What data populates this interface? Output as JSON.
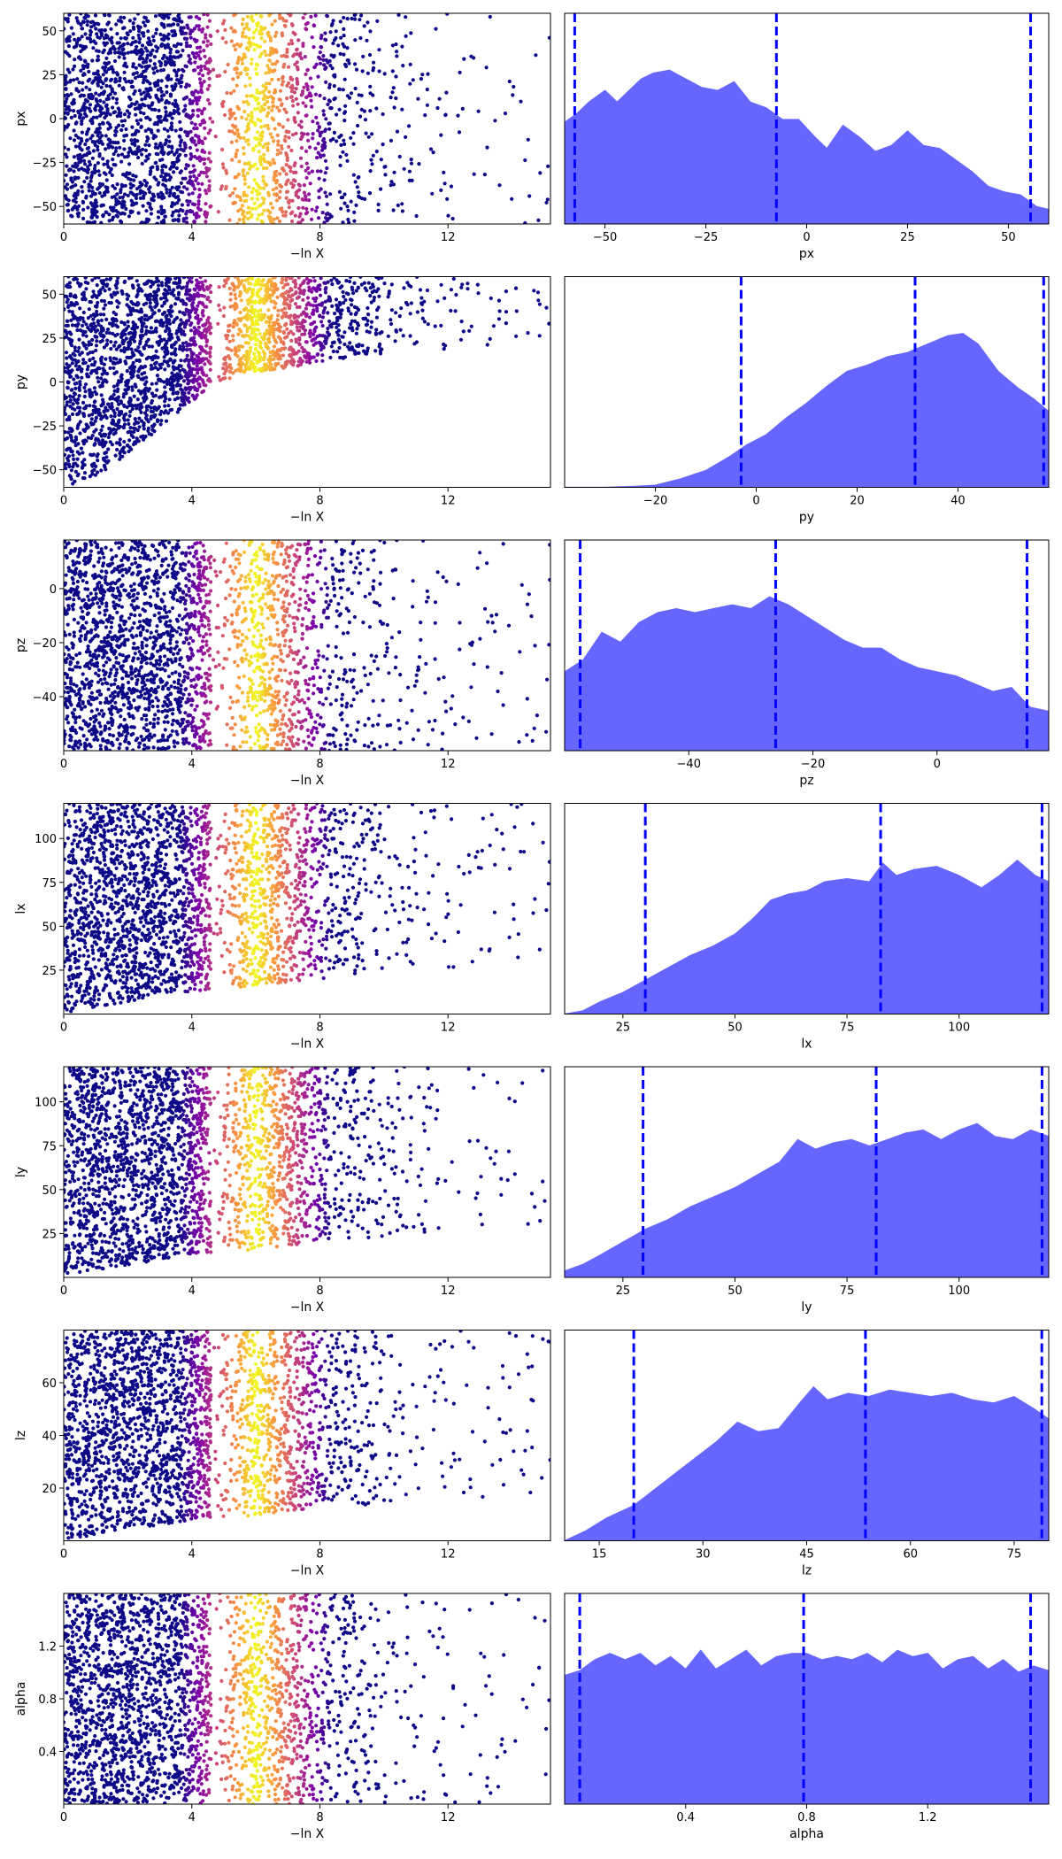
{
  "chart_data": [
    {
      "type": "scatter",
      "xlabel": "−ln X",
      "ylabel": "px",
      "xlim": [
        0,
        15.2
      ],
      "ylim": [
        -60,
        60
      ],
      "xticks": [
        0,
        4,
        8,
        12
      ],
      "yticks": [
        -50,
        -25,
        0,
        25,
        50
      ],
      "colormap": [
        "#0d0887",
        "#7e03a8",
        "#cc4778",
        "#f89540",
        "#f0f921"
      ],
      "lower_bound": [
        [
          0,
          -60
        ],
        [
          15.2,
          -60
        ]
      ],
      "peak_x": 6.0,
      "max_x": 15.2
    },
    {
      "type": "area",
      "xlabel": "px",
      "xlim": [
        -60,
        60
      ],
      "xticks": [
        -50,
        -25,
        0,
        25,
        50
      ],
      "fill_color": "#6666ff",
      "line_color": "#0000ff",
      "quantile_lines": [
        -57.5,
        -7.5,
        55.5
      ],
      "x": [
        -60,
        -57,
        -54,
        -50,
        -47,
        -44,
        -41,
        -38,
        -34,
        -30,
        -26,
        -22,
        -18,
        -14,
        -10,
        -6,
        -2,
        2,
        5,
        9,
        13,
        17,
        21,
        25,
        29,
        33,
        37,
        41,
        45,
        49,
        53,
        57,
        60
      ],
      "y": [
        0.35,
        0.38,
        0.42,
        0.46,
        0.42,
        0.46,
        0.5,
        0.52,
        0.53,
        0.5,
        0.47,
        0.46,
        0.49,
        0.42,
        0.4,
        0.36,
        0.36,
        0.3,
        0.26,
        0.34,
        0.3,
        0.25,
        0.27,
        0.32,
        0.27,
        0.26,
        0.22,
        0.18,
        0.13,
        0.11,
        0.1,
        0.06,
        0.05
      ]
    },
    {
      "type": "scatter",
      "xlabel": "−ln X",
      "ylabel": "py",
      "xlim": [
        0,
        15.2
      ],
      "ylim": [
        -60,
        60
      ],
      "xticks": [
        0,
        4,
        8,
        12
      ],
      "yticks": [
        -50,
        -25,
        0,
        25,
        50
      ],
      "colormap": [
        "#0d0887",
        "#7e03a8",
        "#cc4778",
        "#f89540",
        "#f0f921"
      ],
      "lower_bound": [
        [
          0,
          -60
        ],
        [
          1.2,
          -52
        ],
        [
          2.4,
          -35
        ],
        [
          3.6,
          -18
        ],
        [
          4.6,
          -2
        ],
        [
          5.6,
          5
        ],
        [
          7.0,
          8
        ],
        [
          9.0,
          14
        ],
        [
          15.2,
          24
        ]
      ],
      "peak_x": 6.0,
      "max_x": 15.2
    },
    {
      "type": "area",
      "xlabel": "py",
      "xlim": [
        -38,
        58
      ],
      "xticks": [
        -20,
        0,
        20,
        40
      ],
      "fill_color": "#6666ff",
      "line_color": "#0000ff",
      "quantile_lines": [
        -3.0,
        31.5,
        57.0
      ],
      "x": [
        -38,
        -30,
        -24,
        -20,
        -15,
        -10,
        -5,
        -2,
        2,
        6,
        10,
        14,
        18,
        22,
        26,
        30,
        34,
        38,
        41,
        44,
        48,
        52,
        55,
        58
      ],
      "y": [
        0.0,
        0.0,
        0.005,
        0.01,
        0.04,
        0.08,
        0.15,
        0.2,
        0.25,
        0.33,
        0.4,
        0.48,
        0.55,
        0.58,
        0.62,
        0.64,
        0.68,
        0.72,
        0.73,
        0.68,
        0.55,
        0.47,
        0.42,
        0.36
      ]
    },
    {
      "type": "scatter",
      "xlabel": "−ln X",
      "ylabel": "pz",
      "xlim": [
        0,
        15.2
      ],
      "ylim": [
        -60,
        18
      ],
      "xticks": [
        0,
        4,
        8,
        12
      ],
      "yticks": [
        -40,
        -20,
        0
      ],
      "colormap": [
        "#0d0887",
        "#7e03a8",
        "#cc4778",
        "#f89540",
        "#f0f921"
      ],
      "lower_bound": [
        [
          0,
          -60
        ],
        [
          15.2,
          -60
        ]
      ],
      "peak_x": 6.0,
      "max_x": 15.2
    },
    {
      "type": "area",
      "xlabel": "pz",
      "xlim": [
        -60,
        18
      ],
      "xticks": [
        -40,
        -20,
        0
      ],
      "fill_color": "#6666ff",
      "line_color": "#0000ff",
      "quantile_lines": [
        -57.5,
        -26.0,
        14.5
      ],
      "x": [
        -60,
        -57,
        -54,
        -51,
        -48,
        -45,
        -42,
        -39,
        -36,
        -33,
        -30,
        -27,
        -24,
        -21,
        -18,
        -15,
        -12,
        -9,
        -6,
        -3,
        0,
        3,
        6,
        9,
        12,
        15,
        18
      ],
      "y": [
        0.4,
        0.46,
        0.6,
        0.55,
        0.65,
        0.7,
        0.72,
        0.7,
        0.72,
        0.74,
        0.72,
        0.78,
        0.74,
        0.68,
        0.62,
        0.56,
        0.52,
        0.52,
        0.46,
        0.42,
        0.4,
        0.38,
        0.34,
        0.3,
        0.32,
        0.22,
        0.2
      ]
    },
    {
      "type": "scatter",
      "xlabel": "−ln X",
      "ylabel": "lx",
      "xlim": [
        0,
        15.2
      ],
      "ylim": [
        0,
        120
      ],
      "xticks": [
        0,
        4,
        8,
        12
      ],
      "yticks": [
        25,
        50,
        75,
        100
      ],
      "colormap": [
        "#0d0887",
        "#7e03a8",
        "#cc4778",
        "#f89540",
        "#f0f921"
      ],
      "lower_bound": [
        [
          0,
          0
        ],
        [
          1.0,
          3
        ],
        [
          2.0,
          7
        ],
        [
          3.0,
          10
        ],
        [
          4.0,
          13
        ],
        [
          5.5,
          15
        ],
        [
          7.0,
          18
        ],
        [
          9.0,
          22
        ],
        [
          15.2,
          30
        ]
      ],
      "peak_x": 6.0,
      "max_x": 15.2
    },
    {
      "type": "area",
      "xlabel": "lx",
      "xlim": [
        12,
        120
      ],
      "xticks": [
        25,
        50,
        75,
        100
      ],
      "fill_color": "#6666ff",
      "line_color": "#0000ff",
      "quantile_lines": [
        30.0,
        82.5,
        118.5
      ],
      "x": [
        12,
        16,
        20,
        25,
        30,
        35,
        40,
        45,
        50,
        54,
        58,
        62,
        66,
        70,
        75,
        80,
        83,
        86,
        90,
        95,
        100,
        105,
        109,
        113,
        117,
        120
      ],
      "y": [
        0.0,
        0.02,
        0.08,
        0.14,
        0.22,
        0.3,
        0.38,
        0.44,
        0.52,
        0.62,
        0.74,
        0.78,
        0.8,
        0.86,
        0.88,
        0.86,
        0.98,
        0.9,
        0.94,
        0.96,
        0.9,
        0.82,
        0.9,
        1.0,
        0.9,
        0.86
      ]
    },
    {
      "type": "scatter",
      "xlabel": "−ln X",
      "ylabel": "ly",
      "xlim": [
        0,
        15.2
      ],
      "ylim": [
        0,
        120
      ],
      "xticks": [
        0,
        4,
        8,
        12
      ],
      "yticks": [
        25,
        50,
        75,
        100
      ],
      "colormap": [
        "#0d0887",
        "#7e03a8",
        "#cc4778",
        "#f89540",
        "#f0f921"
      ],
      "lower_bound": [
        [
          0,
          0
        ],
        [
          1.0,
          3
        ],
        [
          2.0,
          7
        ],
        [
          3.0,
          10
        ],
        [
          4.0,
          13
        ],
        [
          5.5,
          15
        ],
        [
          7.0,
          18
        ],
        [
          9.0,
          22
        ],
        [
          15.2,
          30
        ]
      ],
      "peak_x": 6.0,
      "max_x": 15.2
    },
    {
      "type": "area",
      "xlabel": "ly",
      "xlim": [
        12,
        120
      ],
      "xticks": [
        25,
        50,
        75,
        100
      ],
      "fill_color": "#6666ff",
      "line_color": "#0000ff",
      "quantile_lines": [
        29.5,
        81.5,
        118.5
      ],
      "x": [
        12,
        16,
        20,
        25,
        30,
        35,
        40,
        45,
        50,
        55,
        60,
        64,
        68,
        72,
        76,
        80,
        84,
        88,
        92,
        96,
        100,
        104,
        108,
        112,
        116,
        120
      ],
      "y": [
        0.04,
        0.08,
        0.14,
        0.22,
        0.3,
        0.36,
        0.44,
        0.5,
        0.56,
        0.64,
        0.72,
        0.86,
        0.8,
        0.84,
        0.86,
        0.82,
        0.86,
        0.9,
        0.92,
        0.86,
        0.92,
        0.96,
        0.88,
        0.86,
        0.92,
        0.88
      ]
    },
    {
      "type": "scatter",
      "xlabel": "−ln X",
      "ylabel": "lz",
      "xlim": [
        0,
        15.2
      ],
      "ylim": [
        0,
        80
      ],
      "xticks": [
        0,
        4,
        8,
        12
      ],
      "yticks": [
        20,
        40,
        60
      ],
      "colormap": [
        "#0d0887",
        "#7e03a8",
        "#cc4778",
        "#f89540",
        "#f0f921"
      ],
      "lower_bound": [
        [
          0,
          0
        ],
        [
          1.0,
          2
        ],
        [
          2.0,
          4
        ],
        [
          3.0,
          6
        ],
        [
          4.0,
          8
        ],
        [
          5.5,
          9
        ],
        [
          7.0,
          11
        ],
        [
          9.0,
          13
        ],
        [
          15.2,
          18
        ]
      ],
      "peak_x": 6.0,
      "max_x": 15.2
    },
    {
      "type": "area",
      "xlabel": "lz",
      "xlim": [
        10,
        80
      ],
      "xticks": [
        15,
        30,
        45,
        60,
        75
      ],
      "fill_color": "#6666ff",
      "line_color": "#0000ff",
      "quantile_lines": [
        20.0,
        53.5,
        79.0
      ],
      "x": [
        10,
        13,
        16,
        20,
        23,
        26,
        29,
        32,
        35,
        38,
        41,
        44,
        46,
        48,
        51,
        54,
        57,
        60,
        63,
        66,
        69,
        72,
        75,
        78,
        80
      ],
      "y": [
        0.0,
        0.06,
        0.14,
        0.22,
        0.32,
        0.42,
        0.52,
        0.62,
        0.74,
        0.68,
        0.7,
        0.86,
        0.96,
        0.88,
        0.92,
        0.9,
        0.94,
        0.92,
        0.9,
        0.92,
        0.88,
        0.86,
        0.9,
        0.82,
        0.76
      ]
    },
    {
      "type": "scatter",
      "xlabel": "−ln X",
      "ylabel": "alpha",
      "xlim": [
        0,
        15.2
      ],
      "ylim": [
        0,
        1.6
      ],
      "xticks": [
        0,
        4,
        8,
        12
      ],
      "yticks": [
        0.4,
        0.8,
        1.2
      ],
      "colormap": [
        "#0d0887",
        "#7e03a8",
        "#cc4778",
        "#f89540",
        "#f0f921"
      ],
      "lower_bound": [
        [
          0,
          0
        ],
        [
          15.2,
          0
        ]
      ],
      "peak_x": 6.0,
      "max_x": 15.2
    },
    {
      "type": "area",
      "xlabel": "alpha",
      "xlim": [
        0,
        1.6
      ],
      "xticks": [
        0.4,
        0.8,
        1.2
      ],
      "fill_color": "#6666ff",
      "line_color": "#0000ff",
      "quantile_lines": [
        0.05,
        0.79,
        1.54
      ],
      "x": [
        0.0,
        0.05,
        0.1,
        0.15,
        0.2,
        0.25,
        0.3,
        0.35,
        0.4,
        0.45,
        0.5,
        0.55,
        0.6,
        0.65,
        0.7,
        0.75,
        0.8,
        0.85,
        0.9,
        0.95,
        1.0,
        1.05,
        1.1,
        1.15,
        1.2,
        1.25,
        1.3,
        1.35,
        1.4,
        1.45,
        1.5,
        1.55,
        1.6
      ],
      "y": [
        0.82,
        0.85,
        0.92,
        0.96,
        0.92,
        0.96,
        0.88,
        0.94,
        0.86,
        0.98,
        0.86,
        0.92,
        0.98,
        0.88,
        0.94,
        0.96,
        0.96,
        0.92,
        0.94,
        0.92,
        0.96,
        0.9,
        0.98,
        0.94,
        0.96,
        0.86,
        0.92,
        0.94,
        0.86,
        0.92,
        0.84,
        0.88,
        0.85
      ]
    }
  ]
}
